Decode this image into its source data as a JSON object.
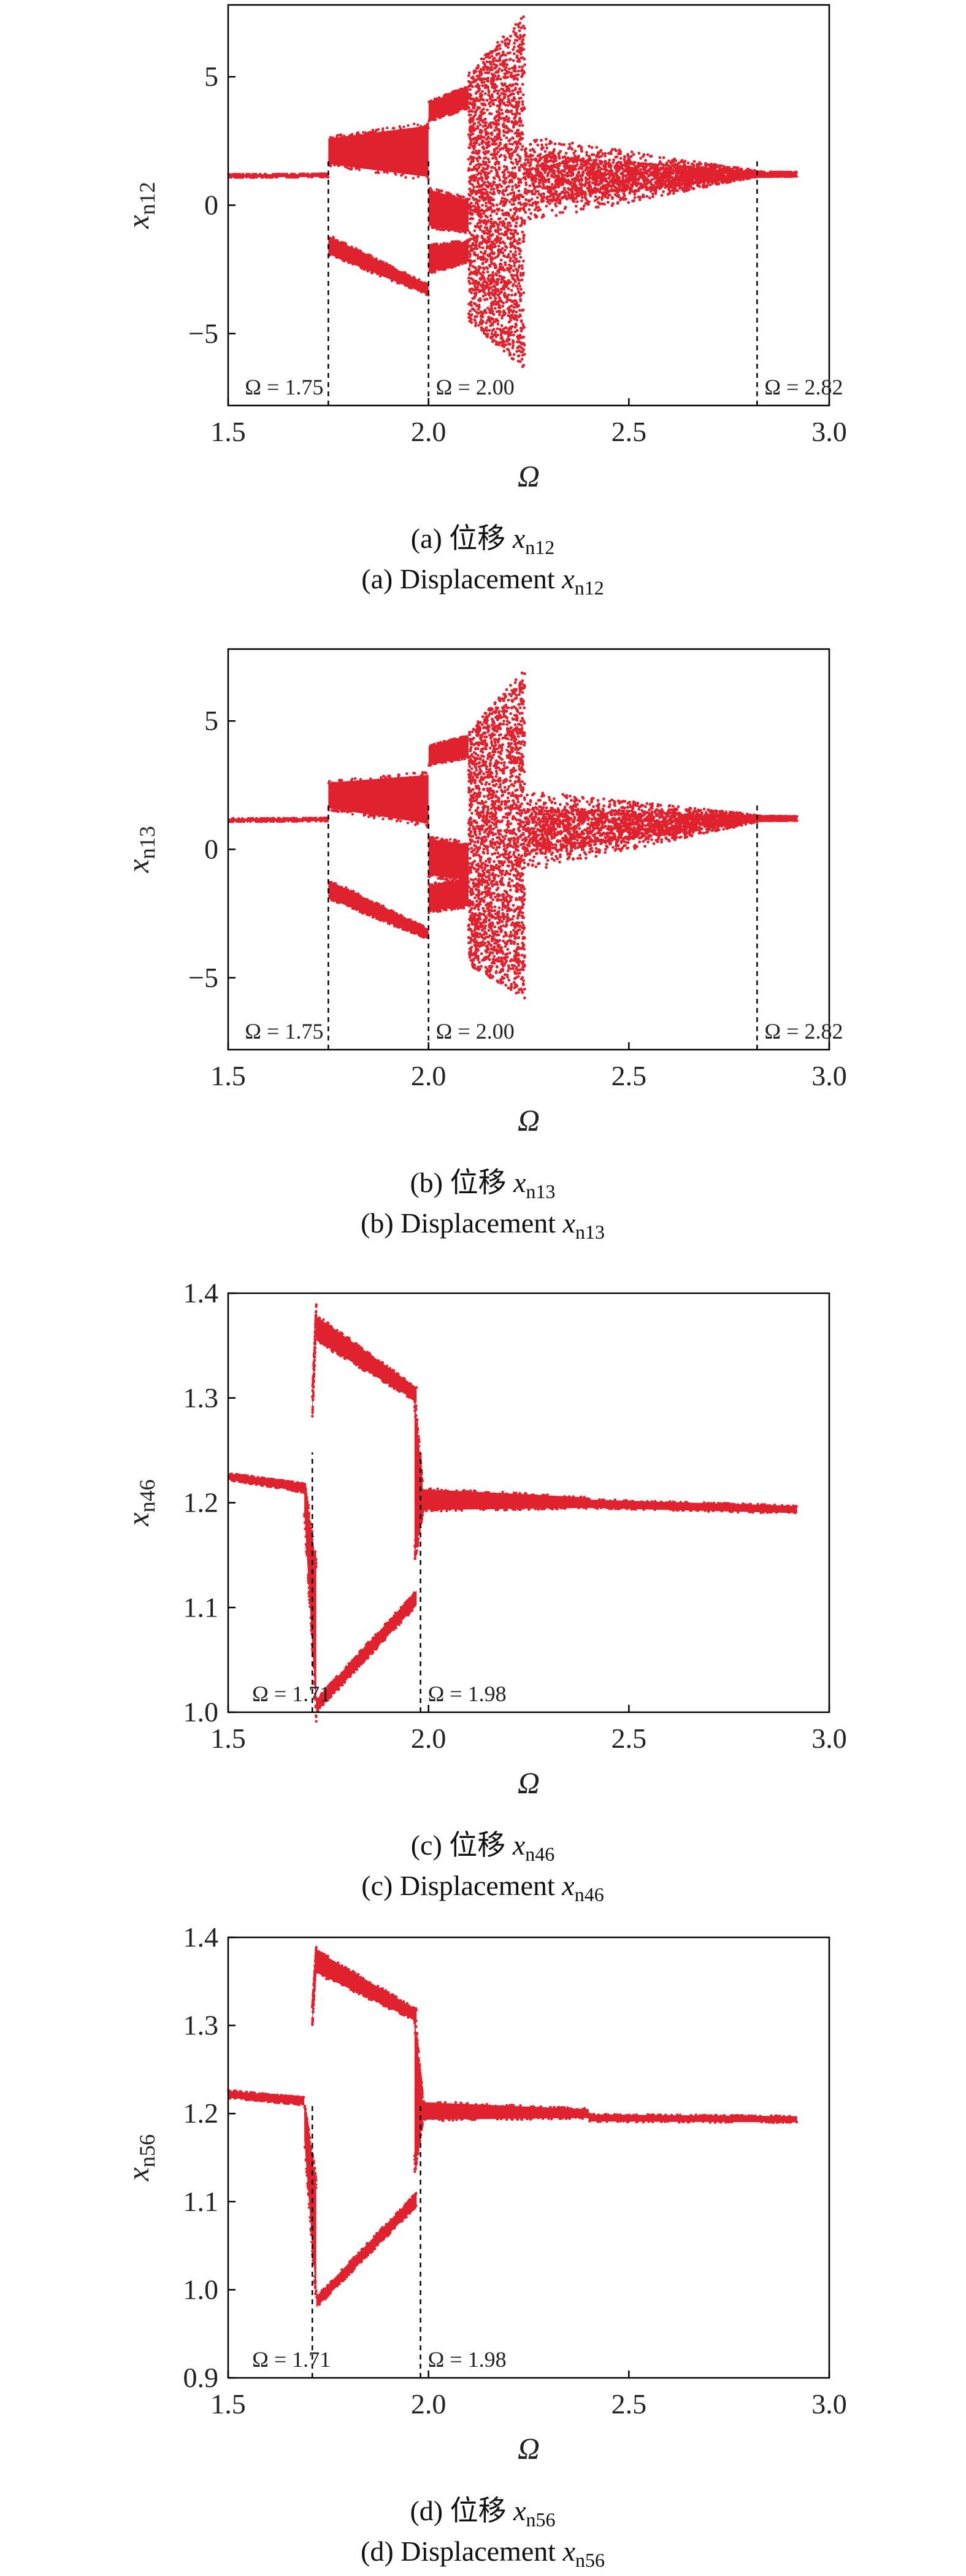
{
  "color": "#e0222e",
  "chart_data": [
    {
      "type": "scatter",
      "subtype": "bifurcation",
      "xlabel": "Ω",
      "ylabel_base": "x",
      "ylabel_sub": "n12",
      "caption_cn_prefix": "(a) 位移 ",
      "caption_en_prefix": "(a) Displacement ",
      "caption_var": "x",
      "caption_sub": "n12",
      "xlim": [
        1.5,
        3.0
      ],
      "ylim": [
        -7.8,
        7.8
      ],
      "xticks": [
        1.5,
        2.0,
        2.5,
        3.0
      ],
      "xtick_labels": [
        "1.5",
        "2.0",
        "2.5",
        "3.0"
      ],
      "yticks": [
        5,
        0,
        -5
      ],
      "ytick_labels": [
        "5",
        "0",
        "−5"
      ],
      "annotations": [
        {
          "x": 1.75,
          "label": "Ω = 1.75"
        },
        {
          "x": 2.0,
          "label": "Ω = 2.00"
        },
        {
          "x": 2.82,
          "label": "Ω = 2.82"
        }
      ],
      "regions": [
        {
          "kind": "band",
          "x": [
            1.5,
            1.75
          ],
          "lo": [
            1.08,
            1.1
          ],
          "hi": [
            1.2,
            1.22
          ]
        },
        {
          "kind": "band",
          "x": [
            1.75,
            2.0
          ],
          "lo": [
            1.6,
            1.1
          ],
          "hi": [
            2.6,
            3.1
          ]
        },
        {
          "kind": "band",
          "x": [
            1.75,
            2.0
          ],
          "lo": [
            -1.9,
            -3.5
          ],
          "hi": [
            -1.2,
            -3.1
          ]
        },
        {
          "kind": "band",
          "x": [
            2.0,
            2.1
          ],
          "lo": [
            3.3,
            3.8
          ],
          "hi": [
            4.0,
            4.6
          ]
        },
        {
          "kind": "band",
          "x": [
            2.0,
            2.1
          ],
          "lo": [
            -0.8,
            -1.0
          ],
          "hi": [
            0.6,
            0.2
          ]
        },
        {
          "kind": "band",
          "x": [
            2.0,
            2.1
          ],
          "lo": [
            -2.6,
            -2.2
          ],
          "hi": [
            -1.6,
            -1.4
          ]
        },
        {
          "kind": "chaos",
          "x": [
            2.1,
            2.24
          ],
          "lo": [
            -4.5,
            -6.4
          ],
          "hi": [
            5.2,
            7.4
          ],
          "n": 2200
        },
        {
          "kind": "chaos",
          "x": [
            2.24,
            2.82
          ],
          "lo": [
            -0.7,
            1.1
          ],
          "hi": [
            2.7,
            1.35
          ],
          "n": 2600
        },
        {
          "kind": "band",
          "x": [
            2.82,
            2.92
          ],
          "lo": [
            1.12,
            1.12
          ],
          "hi": [
            1.3,
            1.28
          ]
        }
      ]
    },
    {
      "type": "scatter",
      "subtype": "bifurcation",
      "xlabel": "Ω",
      "ylabel_base": "x",
      "ylabel_sub": "n13",
      "caption_cn_prefix": "(b) 位移 ",
      "caption_en_prefix": "(b) Displacement ",
      "caption_var": "x",
      "caption_sub": "n13",
      "xlim": [
        1.5,
        3.0
      ],
      "ylim": [
        -7.8,
        7.8
      ],
      "xticks": [
        1.5,
        2.0,
        2.5,
        3.0
      ],
      "xtick_labels": [
        "1.5",
        "2.0",
        "2.5",
        "3.0"
      ],
      "yticks": [
        5,
        0,
        -5
      ],
      "ytick_labels": [
        "5",
        "0",
        "−5"
      ],
      "annotations": [
        {
          "x": 1.75,
          "label": "Ω = 1.75"
        },
        {
          "x": 2.0,
          "label": "Ω = 2.00"
        },
        {
          "x": 2.82,
          "label": "Ω = 2.82"
        }
      ],
      "regions": [
        {
          "kind": "band",
          "x": [
            1.5,
            1.75
          ],
          "lo": [
            1.08,
            1.1
          ],
          "hi": [
            1.2,
            1.22
          ]
        },
        {
          "kind": "band",
          "x": [
            1.75,
            2.0
          ],
          "lo": [
            1.6,
            1.0
          ],
          "hi": [
            2.6,
            2.9
          ]
        },
        {
          "kind": "band",
          "x": [
            1.75,
            2.0
          ],
          "lo": [
            -1.9,
            -3.5
          ],
          "hi": [
            -1.2,
            -3.1
          ]
        },
        {
          "kind": "band",
          "x": [
            2.0,
            2.1
          ],
          "lo": [
            3.3,
            3.6
          ],
          "hi": [
            4.0,
            4.4
          ]
        },
        {
          "kind": "band",
          "x": [
            2.0,
            2.1
          ],
          "lo": [
            -1.0,
            -1.2
          ],
          "hi": [
            0.4,
            0.2
          ]
        },
        {
          "kind": "band",
          "x": [
            2.0,
            2.1
          ],
          "lo": [
            -2.4,
            -2.2
          ],
          "hi": [
            -1.4,
            -1.2
          ]
        },
        {
          "kind": "chaos",
          "x": [
            2.1,
            2.24
          ],
          "lo": [
            -4.5,
            -5.8
          ],
          "hi": [
            4.6,
            7.0
          ],
          "n": 2200
        },
        {
          "kind": "chaos",
          "x": [
            2.24,
            2.82
          ],
          "lo": [
            -0.9,
            1.05
          ],
          "hi": [
            2.3,
            1.35
          ],
          "n": 2600
        },
        {
          "kind": "band",
          "x": [
            2.82,
            2.92
          ],
          "lo": [
            1.12,
            1.12
          ],
          "hi": [
            1.3,
            1.28
          ]
        }
      ]
    },
    {
      "type": "scatter",
      "subtype": "bifurcation",
      "xlabel": "Ω",
      "ylabel_base": "x",
      "ylabel_sub": "n46",
      "caption_cn_prefix": "(c) 位移 ",
      "caption_en_prefix": "(c) Displacement ",
      "caption_var": "x",
      "caption_sub": "n46",
      "xlim": [
        1.5,
        3.0
      ],
      "ylim": [
        1.0,
        1.4
      ],
      "xticks": [
        1.5,
        2.0,
        2.5,
        3.0
      ],
      "xtick_labels": [
        "1.5",
        "2.0",
        "2.5",
        "3.0"
      ],
      "yticks": [
        1.0,
        1.1,
        1.2,
        1.3,
        1.4
      ],
      "ytick_labels": [
        "1.0",
        "1.1",
        "1.2",
        "1.3",
        "1.4"
      ],
      "annotations": [
        {
          "x": 1.71,
          "label": "Ω = 1.71"
        },
        {
          "x": 1.98,
          "label": "Ω = 1.98"
        }
      ],
      "regions": [
        {
          "kind": "band",
          "x": [
            1.5,
            1.69
          ],
          "lo": [
            1.222,
            1.21
          ],
          "hi": [
            1.228,
            1.218
          ]
        },
        {
          "kind": "band",
          "x": [
            1.69,
            1.72
          ],
          "lo": [
            1.19,
            1.0
          ],
          "hi": [
            1.22,
            1.14
          ]
        },
        {
          "kind": "band",
          "x": [
            1.71,
            1.72
          ],
          "lo": [
            1.28,
            1.38
          ],
          "hi": [
            1.3,
            1.39
          ]
        },
        {
          "kind": "band",
          "x": [
            1.72,
            1.97
          ],
          "lo": [
            1.355,
            1.297
          ],
          "hi": [
            1.378,
            1.31
          ]
        },
        {
          "kind": "band",
          "x": [
            1.72,
            1.97
          ],
          "lo": [
            1.0,
            1.102
          ],
          "hi": [
            1.012,
            1.116
          ]
        },
        {
          "kind": "band",
          "x": [
            1.965,
            1.985
          ],
          "lo": [
            1.15,
            1.19
          ],
          "hi": [
            1.3,
            1.22
          ]
        },
        {
          "kind": "band",
          "x": [
            1.98,
            2.4
          ],
          "lo": [
            1.193,
            1.195
          ],
          "hi": [
            1.213,
            1.205
          ]
        },
        {
          "kind": "band",
          "x": [
            2.4,
            2.92
          ],
          "lo": [
            1.195,
            1.19
          ],
          "hi": [
            1.203,
            1.197
          ]
        }
      ]
    },
    {
      "type": "scatter",
      "subtype": "bifurcation",
      "xlabel": "Ω",
      "ylabel_base": "x",
      "ylabel_sub": "n56",
      "caption_cn_prefix": "(d) 位移 ",
      "caption_en_prefix": "(d) Displacement ",
      "caption_var": "x",
      "caption_sub": "n56",
      "xlim": [
        1.5,
        3.0
      ],
      "ylim": [
        0.9,
        1.4
      ],
      "xticks": [
        1.5,
        2.0,
        2.5,
        3.0
      ],
      "xtick_labels": [
        "1.5",
        "2.0",
        "2.5",
        "3.0"
      ],
      "yticks": [
        0.9,
        1.0,
        1.1,
        1.2,
        1.3,
        1.4
      ],
      "ytick_labels": [
        "0.9",
        "1.0",
        "1.1",
        "1.2",
        "1.3",
        "1.4"
      ],
      "annotations": [
        {
          "x": 1.71,
          "label": "Ω = 1.71"
        },
        {
          "x": 1.98,
          "label": "Ω = 1.98"
        }
      ],
      "regions": [
        {
          "kind": "band",
          "x": [
            1.5,
            1.69
          ],
          "lo": [
            1.218,
            1.21
          ],
          "hi": [
            1.226,
            1.218
          ]
        },
        {
          "kind": "band",
          "x": [
            1.69,
            1.72
          ],
          "lo": [
            1.17,
            0.99
          ],
          "hi": [
            1.21,
            1.12
          ]
        },
        {
          "kind": "band",
          "x": [
            1.71,
            1.72
          ],
          "lo": [
            1.3,
            1.38
          ],
          "hi": [
            1.32,
            1.39
          ]
        },
        {
          "kind": "band",
          "x": [
            1.72,
            1.97
          ],
          "lo": [
            1.36,
            1.305
          ],
          "hi": [
            1.385,
            1.318
          ]
        },
        {
          "kind": "band",
          "x": [
            1.72,
            1.97
          ],
          "lo": [
            0.98,
            1.095
          ],
          "hi": [
            0.992,
            1.11
          ]
        },
        {
          "kind": "band",
          "x": [
            1.965,
            1.985
          ],
          "lo": [
            1.14,
            1.19
          ],
          "hi": [
            1.31,
            1.22
          ]
        },
        {
          "kind": "band",
          "x": [
            1.98,
            2.4
          ],
          "lo": [
            1.193,
            1.195
          ],
          "hi": [
            1.213,
            1.205
          ]
        },
        {
          "kind": "band",
          "x": [
            2.4,
            2.92
          ],
          "lo": [
            1.191,
            1.19
          ],
          "hi": [
            1.199,
            1.197
          ]
        }
      ]
    }
  ]
}
